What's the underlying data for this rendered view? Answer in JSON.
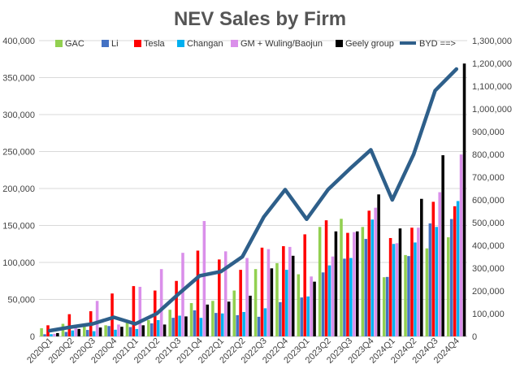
{
  "chart_data": {
    "type": "bar",
    "title": "NEV Sales by Firm",
    "categories": [
      "2020Q1",
      "2020Q2",
      "2020Q3",
      "2020Q4",
      "2021Q1",
      "2021Q2",
      "2021Q3",
      "2021Q4",
      "2022Q1",
      "2022Q2",
      "2022Q3",
      "2022Q4",
      "2023Q1",
      "2023Q2",
      "2023Q3",
      "2023Q4",
      "2024Q1",
      "2024Q2",
      "2024Q3",
      "2024Q4"
    ],
    "x_tick_labels": [
      "2020Q1",
      "2020Q2",
      "2020Q3",
      "2020Q4",
      "2021Q1",
      "2021Q2",
      "2021Q3",
      "2021Q4",
      "2022Q1",
      "2022Q2",
      "2022Q3",
      "2022Q4",
      "2023Q1",
      "2023Q2",
      "2023Q3",
      "2023Q4",
      "2024Q1",
      "2024Q2",
      "2024Q3",
      "2024Q4"
    ],
    "ylim": [
      0,
      400000
    ],
    "y_ticks": [
      0,
      50000,
      100000,
      150000,
      200000,
      250000,
      300000,
      350000,
      400000
    ],
    "y_tick_labels": [
      "0",
      "50,000",
      "100,000",
      "150,000",
      "200,000",
      "250,000",
      "300,000",
      "350,000",
      "400,000"
    ],
    "y2lim": [
      0,
      1300000
    ],
    "y2_ticks": [
      0,
      100000,
      200000,
      300000,
      400000,
      500000,
      600000,
      700000,
      800000,
      900000,
      1000000,
      1100000,
      1200000,
      1300000
    ],
    "y2_tick_labels": [
      "0",
      "100,000",
      "200,000",
      "300,000",
      "400,000",
      "500,000",
      "600,000",
      "700,000",
      "800,000",
      "900,000",
      "1,000,000",
      "1,100,000",
      "1,200,000",
      "1,300,000"
    ],
    "grid": true,
    "legend_position": "top",
    "series": [
      {
        "name": "GAC",
        "color": "#92D050",
        "values": [
          11000,
          17000,
          15000,
          15000,
          20000,
          22000,
          36000,
          45000,
          48000,
          62000,
          91000,
          99000,
          84000,
          148000,
          159000,
          148000,
          80000,
          110000,
          119000,
          134000
        ]
      },
      {
        "name": "Li",
        "color": "#4472C4",
        "values": [
          2900,
          6000,
          8700,
          14000,
          12600,
          17600,
          25100,
          35200,
          31700,
          28700,
          26500,
          46300,
          52600,
          86500,
          105100,
          131800,
          80400,
          108600,
          152800,
          158700
        ]
      },
      {
        "name": "Tesla",
        "color": "#FF0000",
        "values": [
          15000,
          30000,
          34000,
          58000,
          68000,
          62000,
          75000,
          116000,
          104000,
          90000,
          120000,
          122000,
          138000,
          157000,
          140000,
          170000,
          133000,
          147000,
          182000,
          176000
        ]
      },
      {
        "name": "Changan",
        "color": "#00B0F0",
        "values": [
          3000,
          8000,
          7000,
          9000,
          10000,
          22000,
          28000,
          25000,
          31000,
          33000,
          38000,
          90000,
          54000,
          96000,
          106000,
          158000,
          125000,
          127000,
          148000,
          183000
        ]
      },
      {
        "name": "GM + Wuling/Baojun",
        "color": "#DA8FEA",
        "values": [
          3500,
          15000,
          48000,
          16000,
          67000,
          91000,
          113000,
          156000,
          115000,
          106000,
          118000,
          121000,
          81000,
          108000,
          141000,
          174000,
          126000,
          147000,
          195000,
          246000
        ]
      },
      {
        "name": "Geely group",
        "color": "#000000",
        "values": [
          4500,
          10000,
          12000,
          13000,
          15000,
          16000,
          27000,
          43000,
          47000,
          55000,
          92000,
          109000,
          74000,
          142000,
          142000,
          192000,
          146000,
          186000,
          245000,
          369000
        ]
      }
    ],
    "line_series": {
      "name": "BYD ==>",
      "axis": "right",
      "color": "#2E5F8A",
      "values": [
        25000,
        41000,
        55000,
        84000,
        55000,
        100000,
        185000,
        266000,
        285000,
        350000,
        525000,
        645000,
        515000,
        645000,
        735000,
        820000,
        600000,
        800000,
        1080000,
        1175000
      ]
    }
  }
}
